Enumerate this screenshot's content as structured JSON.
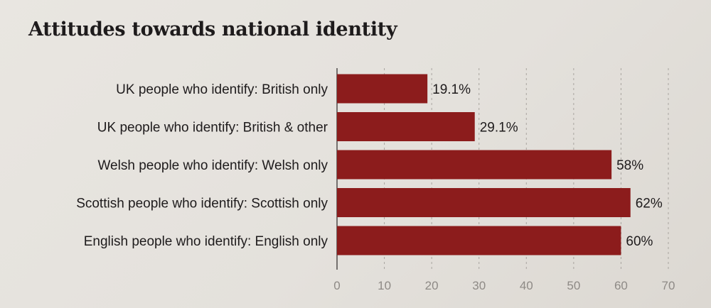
{
  "chart_data": {
    "type": "bar",
    "orientation": "horizontal",
    "title": "Attitudes towards national identity",
    "categories": [
      "UK people who identify: British only",
      "UK people who identify: British & other",
      "Welsh people who identify: Welsh only",
      "Scottish people who identify: Scottish only",
      "English people who identify: English only"
    ],
    "values": [
      19.1,
      29.1,
      58,
      62,
      60
    ],
    "value_labels": [
      "19.1%",
      "29.1%",
      "58%",
      "62%",
      "60%"
    ],
    "xlim": [
      0,
      70
    ],
    "xticks": [
      0,
      10,
      20,
      30,
      40,
      50,
      60,
      70
    ],
    "grid": true,
    "bar_color": "#8c1c1c"
  }
}
